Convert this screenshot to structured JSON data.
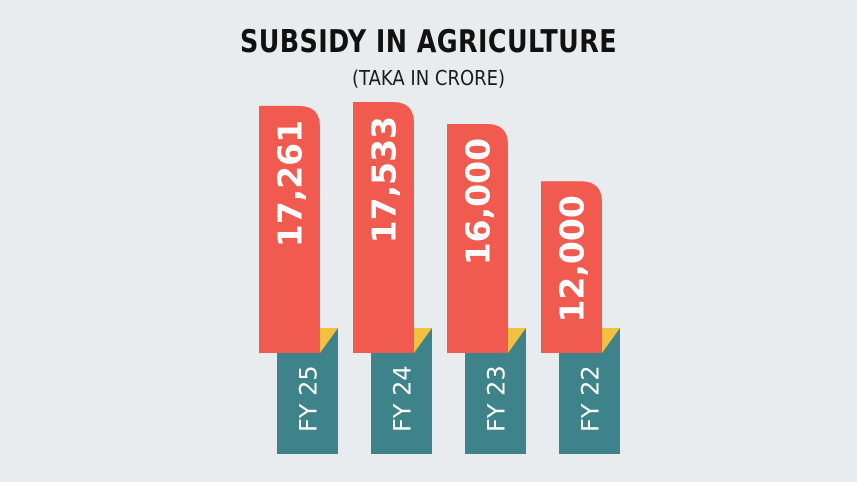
{
  "chart_data": {
    "type": "bar",
    "title": "SUBSIDY IN AGRICULTURE",
    "subtitle": "(TAKA IN CRORE)",
    "categories": [
      "FY 25",
      "FY 24",
      "FY 23",
      "FY 22"
    ],
    "values": [
      17261,
      17533,
      16000,
      12000
    ],
    "value_labels": [
      "17,261",
      "17,533",
      "16,000",
      "12,000"
    ],
    "xlabel": "",
    "ylabel": "",
    "ylim": [
      0,
      17533
    ],
    "grid": false,
    "colors": {
      "bar": "#f05a4f",
      "tab": "#3d8389",
      "fold": "#f3c142",
      "background": "#e8ecee"
    }
  }
}
